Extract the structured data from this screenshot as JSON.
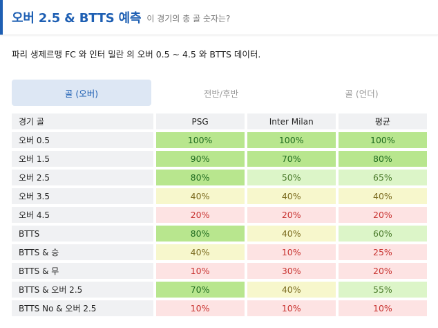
{
  "header": {
    "title": "오버 2.5 & BTTS 예측",
    "subtitle": "이 경기의 총 골 숫자는?"
  },
  "description": "파리 생제르맹 FC 와 인터 밀란 의 오버 0.5 ~ 4.5 와 BTTS 데이터.",
  "tabs": [
    {
      "label": "골 (오버)",
      "active": true
    },
    {
      "label": "전반/후반",
      "active": false
    },
    {
      "label": "골 (언더)",
      "active": false
    }
  ],
  "table": {
    "headers": [
      "경기 골",
      "PSG",
      "Inter Milan",
      "평균"
    ],
    "rows": [
      {
        "label": "오버 0.5",
        "cells": [
          {
            "v": "100%",
            "c": "g1"
          },
          {
            "v": "100%",
            "c": "g1"
          },
          {
            "v": "100%",
            "c": "g1"
          }
        ]
      },
      {
        "label": "오버 1.5",
        "cells": [
          {
            "v": "90%",
            "c": "g1"
          },
          {
            "v": "70%",
            "c": "g1"
          },
          {
            "v": "80%",
            "c": "g1"
          }
        ]
      },
      {
        "label": "오버 2.5",
        "cells": [
          {
            "v": "80%",
            "c": "g1"
          },
          {
            "v": "50%",
            "c": "g2"
          },
          {
            "v": "65%",
            "c": "g2"
          }
        ]
      },
      {
        "label": "오버 3.5",
        "cells": [
          {
            "v": "40%",
            "c": "y"
          },
          {
            "v": "40%",
            "c": "y"
          },
          {
            "v": "40%",
            "c": "y"
          }
        ]
      },
      {
        "label": "오버 4.5",
        "cells": [
          {
            "v": "20%",
            "c": "r"
          },
          {
            "v": "20%",
            "c": "r"
          },
          {
            "v": "20%",
            "c": "r"
          }
        ]
      },
      {
        "label": "BTTS",
        "cells": [
          {
            "v": "80%",
            "c": "g1"
          },
          {
            "v": "40%",
            "c": "y"
          },
          {
            "v": "60%",
            "c": "g2"
          }
        ]
      },
      {
        "label": "BTTS & 승",
        "cells": [
          {
            "v": "40%",
            "c": "y"
          },
          {
            "v": "10%",
            "c": "r"
          },
          {
            "v": "25%",
            "c": "r"
          }
        ]
      },
      {
        "label": "BTTS & 무",
        "cells": [
          {
            "v": "10%",
            "c": "r"
          },
          {
            "v": "30%",
            "c": "r"
          },
          {
            "v": "20%",
            "c": "r"
          }
        ]
      },
      {
        "label": "BTTS & 오버 2.5",
        "cells": [
          {
            "v": "70%",
            "c": "g1"
          },
          {
            "v": "40%",
            "c": "y"
          },
          {
            "v": "55%",
            "c": "g2"
          }
        ]
      },
      {
        "label": "BTTS No & 오버 2.5",
        "cells": [
          {
            "v": "10%",
            "c": "r"
          },
          {
            "v": "10%",
            "c": "r"
          },
          {
            "v": "10%",
            "c": "r"
          }
        ]
      }
    ]
  },
  "colors": {
    "accent": "#1e5fb3",
    "strong_green": "#b8e68e",
    "light_green": "#dcf5c8",
    "yellow": "#f7f7cc",
    "red": "#fde3e3"
  }
}
